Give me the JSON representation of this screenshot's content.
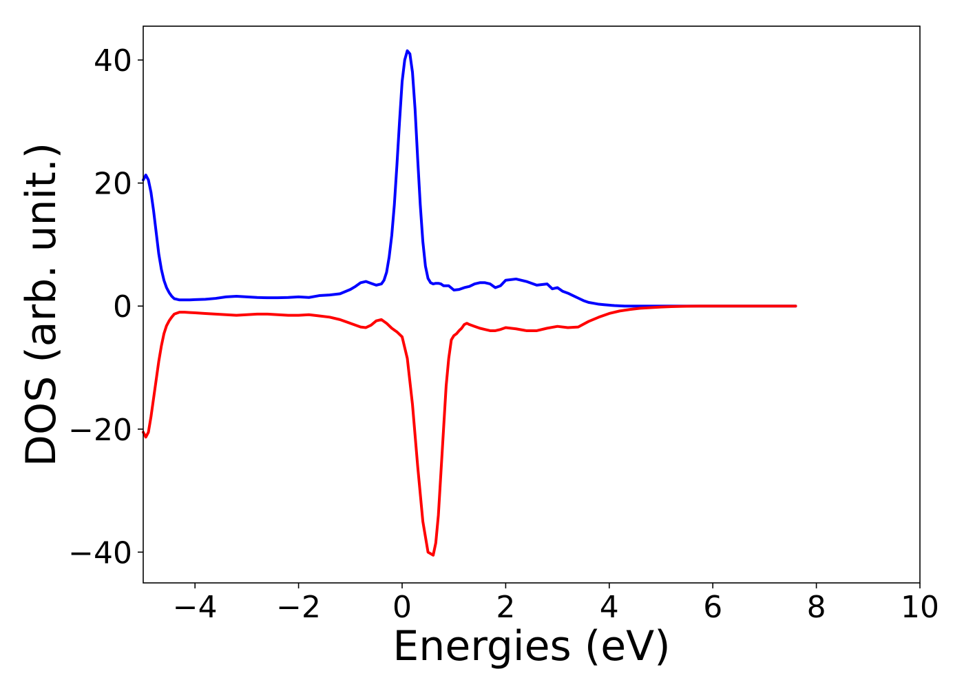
{
  "chart_data": {
    "type": "line",
    "title": "",
    "xlabel": "Energies (eV)",
    "ylabel": "DOS (arb. unit.)",
    "xlim": [
      -5,
      10
    ],
    "ylim": [
      -45,
      45.5
    ],
    "xticks": [
      -4,
      -2,
      0,
      2,
      4,
      6,
      8,
      10
    ],
    "xtick_labels": [
      "−4",
      "−2",
      "0",
      "2",
      "4",
      "6",
      "8",
      "10"
    ],
    "yticks": [
      -40,
      -20,
      0,
      20,
      40
    ],
    "ytick_labels": [
      "−40",
      "−20",
      "0",
      "20",
      "40"
    ],
    "grid": false,
    "legend": "none",
    "series": [
      {
        "color": "#0000ff",
        "x": [
          -5.0,
          -4.95,
          -4.9,
          -4.85,
          -4.8,
          -4.75,
          -4.7,
          -4.65,
          -4.6,
          -4.55,
          -4.5,
          -4.45,
          -4.4,
          -4.3,
          -4.2,
          -4.1,
          -4.0,
          -3.8,
          -3.6,
          -3.4,
          -3.2,
          -3.0,
          -2.8,
          -2.6,
          -2.4,
          -2.2,
          -2.0,
          -1.8,
          -1.6,
          -1.4,
          -1.2,
          -1.0,
          -0.9,
          -0.8,
          -0.7,
          -0.6,
          -0.5,
          -0.4,
          -0.35,
          -0.3,
          -0.25,
          -0.2,
          -0.15,
          -0.1,
          -0.05,
          0.0,
          0.05,
          0.1,
          0.15,
          0.2,
          0.25,
          0.3,
          0.35,
          0.4,
          0.45,
          0.5,
          0.55,
          0.6,
          0.65,
          0.7,
          0.75,
          0.8,
          0.9,
          1.0,
          1.1,
          1.2,
          1.3,
          1.4,
          1.5,
          1.6,
          1.7,
          1.8,
          1.9,
          2.0,
          2.2,
          2.4,
          2.6,
          2.8,
          2.9,
          3.0,
          3.1,
          3.2,
          3.3,
          3.4,
          3.5,
          3.6,
          3.7,
          3.8,
          3.9,
          4.0,
          4.1,
          4.2,
          4.3,
          4.4,
          4.5,
          4.6,
          4.7,
          4.8,
          5.0,
          5.2,
          5.4,
          5.6,
          5.8,
          6.0,
          6.5,
          7.0,
          7.6
        ],
        "y": [
          20.5,
          21.3,
          20.5,
          18.5,
          15.5,
          12.0,
          8.5,
          6.0,
          4.2,
          3.0,
          2.2,
          1.6,
          1.2,
          1.0,
          1.0,
          1.0,
          1.05,
          1.1,
          1.25,
          1.5,
          1.6,
          1.5,
          1.4,
          1.35,
          1.35,
          1.4,
          1.5,
          1.4,
          1.7,
          1.8,
          2.0,
          2.7,
          3.2,
          3.8,
          4.0,
          3.7,
          3.4,
          3.6,
          4.2,
          5.5,
          8.0,
          11.5,
          16.5,
          23.0,
          30.0,
          36.5,
          40.0,
          41.5,
          41.0,
          38.0,
          32.0,
          24.0,
          16.5,
          10.5,
          6.5,
          4.5,
          3.8,
          3.6,
          3.7,
          3.7,
          3.6,
          3.3,
          3.3,
          2.6,
          2.7,
          3.0,
          3.2,
          3.6,
          3.8,
          3.8,
          3.6,
          3.0,
          3.3,
          4.2,
          4.4,
          4.0,
          3.4,
          3.6,
          2.8,
          3.0,
          2.4,
          2.1,
          1.7,
          1.3,
          0.9,
          0.6,
          0.45,
          0.3,
          0.22,
          0.15,
          0.08,
          0.04,
          0.0,
          0.0,
          0.0,
          0.0,
          0.0,
          0.0,
          0.0,
          0.0,
          0.0,
          0.0,
          0.0,
          0.0,
          0.0,
          0.0,
          0.0
        ]
      },
      {
        "color": "#ff0000",
        "x": [
          -5.0,
          -4.95,
          -4.9,
          -4.85,
          -4.8,
          -4.75,
          -4.7,
          -4.65,
          -4.6,
          -4.55,
          -4.5,
          -4.45,
          -4.4,
          -4.3,
          -4.2,
          -4.1,
          -4.0,
          -3.8,
          -3.6,
          -3.4,
          -3.2,
          -3.0,
          -2.8,
          -2.6,
          -2.4,
          -2.2,
          -2.0,
          -1.8,
          -1.6,
          -1.4,
          -1.2,
          -1.0,
          -0.8,
          -0.7,
          -0.6,
          -0.5,
          -0.4,
          -0.3,
          -0.2,
          -0.1,
          0.0,
          0.1,
          0.2,
          0.3,
          0.4,
          0.5,
          0.6,
          0.65,
          0.7,
          0.75,
          0.8,
          0.85,
          0.9,
          0.95,
          1.0,
          1.05,
          1.1,
          1.15,
          1.2,
          1.25,
          1.3,
          1.4,
          1.5,
          1.6,
          1.7,
          1.8,
          1.9,
          2.0,
          2.2,
          2.4,
          2.6,
          2.8,
          3.0,
          3.2,
          3.4,
          3.6,
          3.8,
          4.0,
          4.2,
          4.4,
          4.6,
          4.8,
          5.0,
          5.2,
          5.4,
          5.6,
          5.8,
          6.0,
          6.5,
          7.0,
          7.6
        ],
        "y": [
          -20.5,
          -21.3,
          -20.5,
          -18.0,
          -15.0,
          -12.0,
          -9.0,
          -6.5,
          -4.5,
          -3.2,
          -2.4,
          -1.8,
          -1.3,
          -1.0,
          -1.0,
          -1.05,
          -1.1,
          -1.2,
          -1.3,
          -1.4,
          -1.5,
          -1.4,
          -1.3,
          -1.3,
          -1.4,
          -1.5,
          -1.5,
          -1.4,
          -1.6,
          -1.8,
          -2.2,
          -2.8,
          -3.4,
          -3.5,
          -3.1,
          -2.4,
          -2.2,
          -2.8,
          -3.6,
          -4.2,
          -5.0,
          -8.5,
          -16.0,
          -26.0,
          -35.0,
          -40.0,
          -40.5,
          -38.5,
          -34.0,
          -27.0,
          -20.0,
          -13.0,
          -8.5,
          -5.5,
          -4.8,
          -4.5,
          -4.0,
          -3.6,
          -3.0,
          -2.8,
          -3.0,
          -3.3,
          -3.6,
          -3.8,
          -4.0,
          -4.0,
          -3.8,
          -3.5,
          -3.7,
          -4.0,
          -4.0,
          -3.6,
          -3.3,
          -3.5,
          -3.4,
          -2.5,
          -1.8,
          -1.2,
          -0.8,
          -0.55,
          -0.35,
          -0.25,
          -0.15,
          -0.08,
          -0.04,
          -0.02,
          0.0,
          0.0,
          0.0,
          0.0,
          0.0
        ]
      }
    ]
  }
}
